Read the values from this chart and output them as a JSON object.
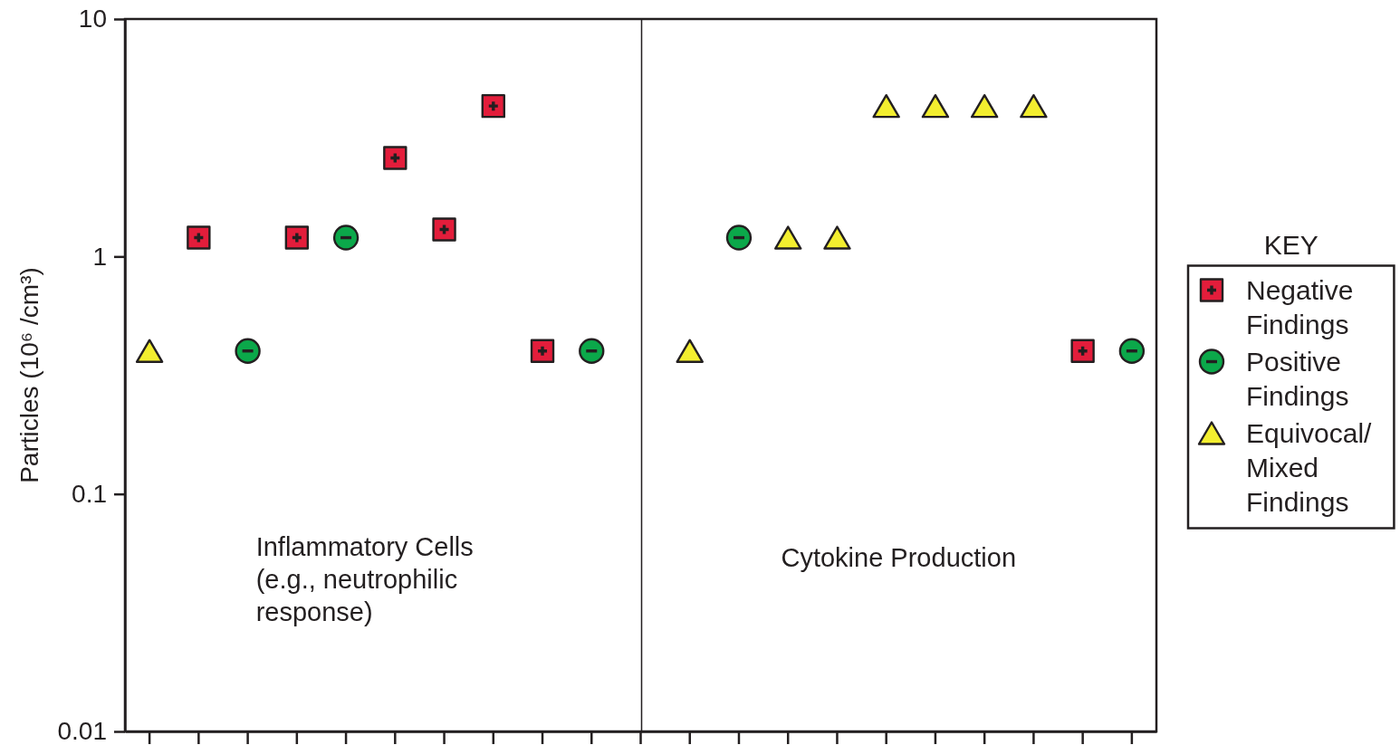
{
  "chart_data": {
    "type": "scatter",
    "categories": [
      null,
      null,
      null,
      null,
      null,
      null,
      null,
      null,
      null,
      null,
      null,
      null,
      null,
      null,
      null,
      null,
      null,
      null,
      null,
      null,
      null
    ],
    "ylabel": "Particles (10⁶ /cm³)",
    "legend_title": "KEY",
    "annotations": [
      "Inflammatory Cells (e.g., neutrophilic response)",
      "Cytokine Production"
    ],
    "series": [
      {
        "name": "Negative Findings",
        "color": "#e31d3b",
        "marker": "square",
        "values": [
          null,
          1.2,
          null,
          1.2,
          null,
          2.6,
          1.3,
          4.3,
          0.4,
          null,
          null,
          null,
          null,
          null,
          null,
          null,
          null,
          null,
          null,
          0.4,
          null
        ]
      },
      {
        "name": "Positive Findings",
        "color": "#0ba84a",
        "marker": "circle",
        "values": [
          null,
          null,
          0.4,
          null,
          1.2,
          null,
          null,
          null,
          null,
          0.4,
          null,
          null,
          1.2,
          null,
          null,
          null,
          null,
          null,
          null,
          null,
          0.4
        ]
      },
      {
        "name": "Equivocal/Mixed Findings",
        "color": "#f3ee2f",
        "marker": "triangle",
        "values": [
          0.4,
          null,
          null,
          null,
          null,
          null,
          null,
          null,
          null,
          null,
          null,
          0.4,
          null,
          1.2,
          1.2,
          4.3,
          4.3,
          4.3,
          4.3,
          null,
          null
        ]
      }
    ],
    "ylim": [
      0.01,
      10
    ],
    "yticks": [
      0.01,
      0.1,
      1,
      10
    ],
    "log": true,
    "legend": "right",
    "tick_labels": "y"
  }
}
